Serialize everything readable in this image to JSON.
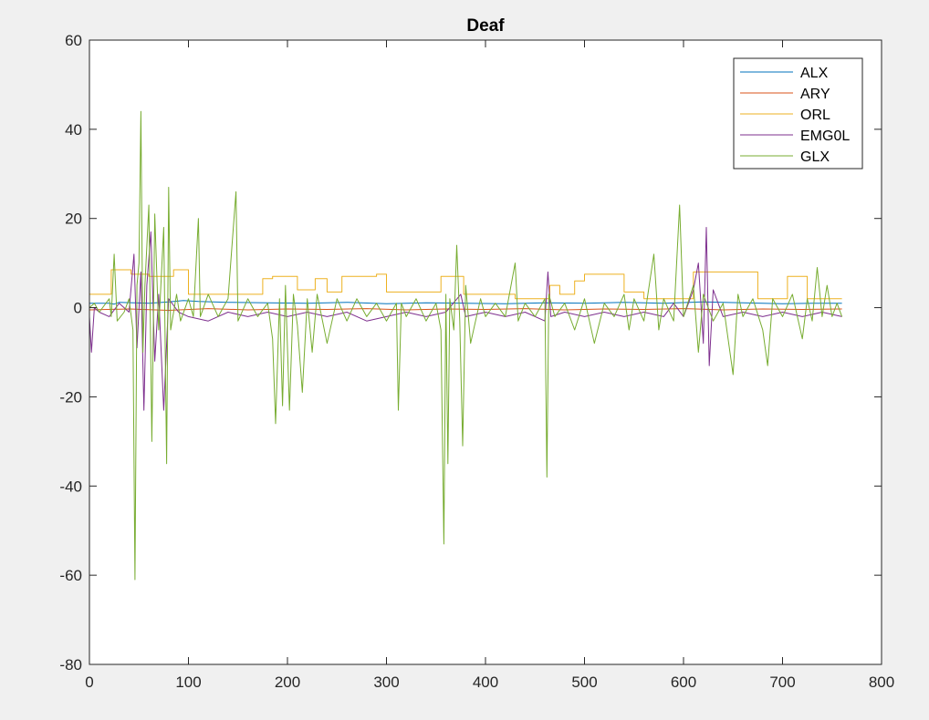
{
  "chart_data": {
    "type": "line",
    "title": "Deaf",
    "xlabel": "",
    "ylabel": "",
    "xlim": [
      0,
      800
    ],
    "ylim": [
      -80,
      60
    ],
    "xticks": [
      "0",
      "100",
      "200",
      "300",
      "400",
      "500",
      "600",
      "700",
      "800"
    ],
    "yticks": [
      "-80",
      "-60",
      "-40",
      "-20",
      "0",
      "20",
      "40",
      "60"
    ],
    "xtick_values": [
      0,
      100,
      200,
      300,
      400,
      500,
      600,
      700,
      800
    ],
    "ytick_values": [
      -80,
      -60,
      -40,
      -20,
      0,
      20,
      40,
      60
    ],
    "grid": false,
    "legend_position": "top-right",
    "series": [
      {
        "name": "ALX",
        "color": "#0072bd",
        "points": [
          [
            0,
            1
          ],
          [
            20,
            1
          ],
          [
            25,
            0.8
          ],
          [
            30,
            1.2
          ],
          [
            60,
            1.0
          ],
          [
            80,
            1.3
          ],
          [
            95,
            1.6
          ],
          [
            110,
            1.4
          ],
          [
            140,
            1.2
          ],
          [
            180,
            1.1
          ],
          [
            220,
            1.0
          ],
          [
            260,
            1.2
          ],
          [
            300,
            0.9
          ],
          [
            340,
            1.1
          ],
          [
            380,
            1.0
          ],
          [
            420,
            0.9
          ],
          [
            460,
            1.1
          ],
          [
            500,
            1.0
          ],
          [
            540,
            1.2
          ],
          [
            580,
            1.0
          ],
          [
            620,
            1.3
          ],
          [
            660,
            1.1
          ],
          [
            700,
            0.9
          ],
          [
            730,
            1.0
          ],
          [
            760,
            1.0
          ]
        ]
      },
      {
        "name": "ARY",
        "color": "#d95319",
        "points": [
          [
            0,
            -0.5
          ],
          [
            40,
            -0.3
          ],
          [
            80,
            -0.6
          ],
          [
            120,
            -0.2
          ],
          [
            160,
            -0.5
          ],
          [
            200,
            -0.3
          ],
          [
            240,
            -0.4
          ],
          [
            280,
            -0.2
          ],
          [
            320,
            -0.5
          ],
          [
            360,
            -0.3
          ],
          [
            400,
            -0.4
          ],
          [
            440,
            -0.2
          ],
          [
            480,
            -0.5
          ],
          [
            520,
            -0.3
          ],
          [
            560,
            -0.4
          ],
          [
            600,
            -0.2
          ],
          [
            640,
            -0.5
          ],
          [
            680,
            -0.3
          ],
          [
            720,
            -0.4
          ],
          [
            760,
            -0.3
          ]
        ]
      },
      {
        "name": "ORL",
        "color": "#edb120",
        "points": [
          [
            0,
            3
          ],
          [
            22,
            3
          ],
          [
            22,
            8.5
          ],
          [
            42,
            8.5
          ],
          [
            42,
            7.5
          ],
          [
            60,
            7.5
          ],
          [
            60,
            7
          ],
          [
            85,
            7
          ],
          [
            85,
            8.5
          ],
          [
            100,
            8.5
          ],
          [
            100,
            3
          ],
          [
            175,
            3
          ],
          [
            175,
            6.5
          ],
          [
            185,
            6.5
          ],
          [
            185,
            7
          ],
          [
            210,
            7
          ],
          [
            210,
            4
          ],
          [
            228,
            4
          ],
          [
            228,
            6.5
          ],
          [
            240,
            6.5
          ],
          [
            240,
            3.5
          ],
          [
            255,
            3.5
          ],
          [
            255,
            7
          ],
          [
            290,
            7
          ],
          [
            290,
            7.5
          ],
          [
            300,
            7.5
          ],
          [
            300,
            3.5
          ],
          [
            355,
            3.5
          ],
          [
            355,
            7
          ],
          [
            378,
            7
          ],
          [
            378,
            3
          ],
          [
            430,
            3
          ],
          [
            430,
            2
          ],
          [
            465,
            2
          ],
          [
            465,
            5
          ],
          [
            475,
            5
          ],
          [
            475,
            3
          ],
          [
            490,
            3
          ],
          [
            490,
            6
          ],
          [
            500,
            6
          ],
          [
            500,
            7.5
          ],
          [
            540,
            7.5
          ],
          [
            540,
            3.5
          ],
          [
            560,
            3.5
          ],
          [
            560,
            2
          ],
          [
            610,
            2
          ],
          [
            610,
            8
          ],
          [
            675,
            8
          ],
          [
            675,
            2
          ],
          [
            705,
            2
          ],
          [
            705,
            7
          ],
          [
            725,
            7
          ],
          [
            725,
            2
          ],
          [
            760,
            2
          ]
        ]
      },
      {
        "name": "EMG0L",
        "color": "#7e2f8e",
        "points": [
          [
            0,
            -2
          ],
          [
            2,
            -10
          ],
          [
            5,
            0
          ],
          [
            10,
            -1
          ],
          [
            20,
            -2
          ],
          [
            30,
            1
          ],
          [
            40,
            -1
          ],
          [
            45,
            12
          ],
          [
            48,
            -9
          ],
          [
            52,
            8
          ],
          [
            55,
            -23
          ],
          [
            58,
            5
          ],
          [
            62,
            17
          ],
          [
            66,
            -12
          ],
          [
            70,
            3
          ],
          [
            75,
            -23
          ],
          [
            80,
            2
          ],
          [
            90,
            -1
          ],
          [
            100,
            -2
          ],
          [
            120,
            -3
          ],
          [
            140,
            -1
          ],
          [
            160,
            -2
          ],
          [
            180,
            -1
          ],
          [
            200,
            -2
          ],
          [
            220,
            -1
          ],
          [
            240,
            -2
          ],
          [
            260,
            -1
          ],
          [
            280,
            -3
          ],
          [
            300,
            -2
          ],
          [
            320,
            -1
          ],
          [
            340,
            -2
          ],
          [
            360,
            -1
          ],
          [
            375,
            3
          ],
          [
            380,
            -2
          ],
          [
            400,
            -1
          ],
          [
            420,
            -2
          ],
          [
            440,
            -1
          ],
          [
            460,
            -3
          ],
          [
            463,
            8
          ],
          [
            466,
            -2
          ],
          [
            480,
            -1
          ],
          [
            500,
            -2
          ],
          [
            520,
            -1
          ],
          [
            540,
            -2
          ],
          [
            560,
            -1
          ],
          [
            580,
            -2
          ],
          [
            590,
            1
          ],
          [
            600,
            -2
          ],
          [
            610,
            4
          ],
          [
            615,
            10
          ],
          [
            620,
            -8
          ],
          [
            623,
            18
          ],
          [
            626,
            -13
          ],
          [
            630,
            4
          ],
          [
            640,
            -2
          ],
          [
            660,
            -1
          ],
          [
            680,
            -2
          ],
          [
            700,
            -1
          ],
          [
            720,
            -2
          ],
          [
            740,
            -1
          ],
          [
            760,
            -2
          ]
        ]
      },
      {
        "name": "GLX",
        "color": "#77ac30",
        "points": [
          [
            0,
            0
          ],
          [
            5,
            1
          ],
          [
            10,
            -1
          ],
          [
            20,
            2
          ],
          [
            22,
            -2
          ],
          [
            25,
            12
          ],
          [
            28,
            -3
          ],
          [
            35,
            -1
          ],
          [
            40,
            2
          ],
          [
            44,
            -5
          ],
          [
            46,
            -61
          ],
          [
            48,
            5
          ],
          [
            50,
            10
          ],
          [
            52,
            44
          ],
          [
            54,
            -10
          ],
          [
            56,
            5
          ],
          [
            60,
            23
          ],
          [
            63,
            -30
          ],
          [
            66,
            21
          ],
          [
            70,
            -5
          ],
          [
            75,
            18
          ],
          [
            78,
            -35
          ],
          [
            80,
            27
          ],
          [
            82,
            -5
          ],
          [
            88,
            3
          ],
          [
            92,
            -3
          ],
          [
            100,
            2
          ],
          [
            105,
            -2
          ],
          [
            110,
            20
          ],
          [
            112,
            -2
          ],
          [
            120,
            3
          ],
          [
            130,
            -2
          ],
          [
            140,
            2
          ],
          [
            148,
            26
          ],
          [
            150,
            -3
          ],
          [
            160,
            2
          ],
          [
            170,
            -2
          ],
          [
            180,
            1
          ],
          [
            185,
            -7
          ],
          [
            188,
            -26
          ],
          [
            192,
            2
          ],
          [
            195,
            -22
          ],
          [
            198,
            5
          ],
          [
            202,
            -23
          ],
          [
            206,
            3
          ],
          [
            210,
            -4
          ],
          [
            215,
            -19
          ],
          [
            220,
            2
          ],
          [
            225,
            -10
          ],
          [
            230,
            3
          ],
          [
            240,
            -8
          ],
          [
            250,
            2
          ],
          [
            260,
            -3
          ],
          [
            270,
            2
          ],
          [
            280,
            -2
          ],
          [
            290,
            1
          ],
          [
            300,
            -3
          ],
          [
            310,
            1
          ],
          [
            312,
            -23
          ],
          [
            315,
            1
          ],
          [
            320,
            -2
          ],
          [
            330,
            2
          ],
          [
            340,
            -3
          ],
          [
            350,
            1
          ],
          [
            355,
            -5
          ],
          [
            358,
            -53
          ],
          [
            360,
            3
          ],
          [
            362,
            -35
          ],
          [
            364,
            2
          ],
          [
            368,
            -5
          ],
          [
            371,
            14
          ],
          [
            374,
            -3
          ],
          [
            377,
            -31
          ],
          [
            380,
            5
          ],
          [
            385,
            -8
          ],
          [
            390,
            -3
          ],
          [
            395,
            2
          ],
          [
            400,
            -2
          ],
          [
            410,
            1
          ],
          [
            420,
            -2
          ],
          [
            430,
            10
          ],
          [
            433,
            -3
          ],
          [
            440,
            1
          ],
          [
            450,
            -2
          ],
          [
            460,
            2
          ],
          [
            462,
            -38
          ],
          [
            464,
            3
          ],
          [
            470,
            -2
          ],
          [
            480,
            1
          ],
          [
            490,
            -5
          ],
          [
            500,
            2
          ],
          [
            510,
            -8
          ],
          [
            520,
            1
          ],
          [
            530,
            -2
          ],
          [
            540,
            3
          ],
          [
            545,
            -5
          ],
          [
            550,
            2
          ],
          [
            560,
            -3
          ],
          [
            570,
            12
          ],
          [
            575,
            -5
          ],
          [
            580,
            2
          ],
          [
            590,
            -3
          ],
          [
            596,
            23
          ],
          [
            600,
            -2
          ],
          [
            610,
            5
          ],
          [
            615,
            -10
          ],
          [
            620,
            3
          ],
          [
            630,
            -3
          ],
          [
            640,
            1
          ],
          [
            650,
            -15
          ],
          [
            655,
            3
          ],
          [
            660,
            -2
          ],
          [
            670,
            2
          ],
          [
            680,
            -5
          ],
          [
            685,
            -13
          ],
          [
            690,
            2
          ],
          [
            700,
            -2
          ],
          [
            710,
            3
          ],
          [
            720,
            -7
          ],
          [
            725,
            2
          ],
          [
            730,
            -3
          ],
          [
            735,
            9
          ],
          [
            740,
            -2
          ],
          [
            745,
            5
          ],
          [
            750,
            -2
          ],
          [
            755,
            1
          ],
          [
            760,
            -2
          ]
        ]
      }
    ]
  }
}
